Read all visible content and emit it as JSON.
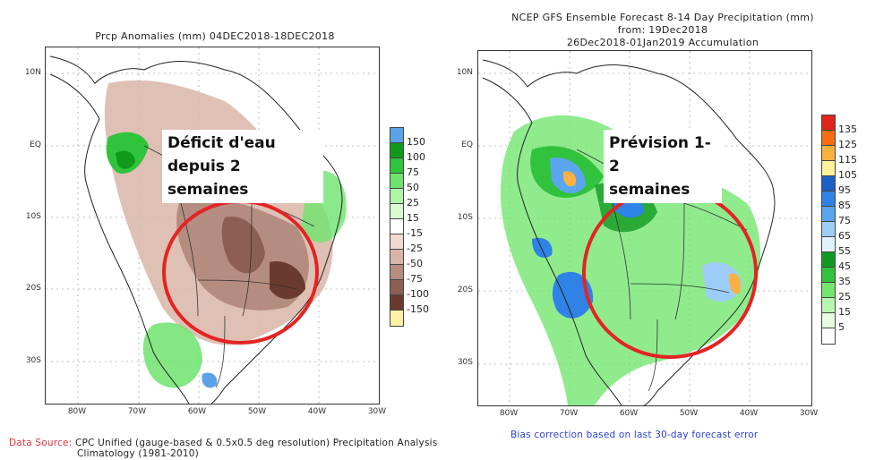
{
  "left_panel": {
    "title": "Prcp Anomalies (mm) 04DEC2018-18DEC2018",
    "y_ticks": [
      "10N",
      "EQ",
      "10S",
      "20S",
      "30S"
    ],
    "x_ticks": [
      "80W",
      "70W",
      "60W",
      "50W",
      "40W",
      "30W"
    ],
    "annotation": [
      "Déficit d'eau",
      "depuis 2 semaines"
    ],
    "colorbar": {
      "labels": [
        "150",
        "100",
        "75",
        "50",
        "25",
        "15",
        "-15",
        "-25",
        "-50",
        "-75",
        "-100",
        "-150"
      ],
      "colors": [
        "#5aa3e8",
        "#0f9a1a",
        "#2fc43c",
        "#6fe36e",
        "#aef5a6",
        "#d8fbd0",
        "#ffffff",
        "#efd9d0",
        "#d9b5a7",
        "#b58d80",
        "#8c5f52",
        "#6b3a2e",
        "#fff2a6"
      ]
    },
    "footer_label": "Data Source:",
    "footer_text": "CPC Unified (gauge-based & 0.5x0.5 deg resolution) Precipitation Analysis",
    "footer_text2": "Climatology (1981-2010)"
  },
  "right_panel": {
    "title_line1": "NCEP GFS Ensemble Forecast 8-14 Day Precipitation (mm)",
    "title_line2": "from: 19Dec2018",
    "title_line3": "26Dec2018-01Jan2019 Accumulation",
    "y_ticks": [
      "10N",
      "EQ",
      "10S",
      "20S",
      "30S"
    ],
    "x_ticks": [
      "80W",
      "70W",
      "60W",
      "50W",
      "40W",
      "30W"
    ],
    "annotation": [
      "Prévision 1-2",
      "semaines"
    ],
    "colorbar": {
      "labels": [
        "135",
        "125",
        "115",
        "105",
        "95",
        "85",
        "75",
        "65",
        "55",
        "45",
        "35",
        "25",
        "15",
        "5"
      ],
      "colors": [
        "#e0241a",
        "#f86d12",
        "#fbb040",
        "#fff29a",
        "#1d60c8",
        "#2f82e6",
        "#5aa6ee",
        "#9ccdf6",
        "#dff3ff",
        "#119a22",
        "#31c23e",
        "#74e670",
        "#b8f6b0",
        "#e6fbe0",
        "#ffffff"
      ]
    },
    "footer_text": "Bias correction based on last 30-day forecast error"
  },
  "colors": {
    "circle": "#e32424",
    "footer_red": "#e0303a",
    "footer_blue": "#2b3fd6"
  }
}
